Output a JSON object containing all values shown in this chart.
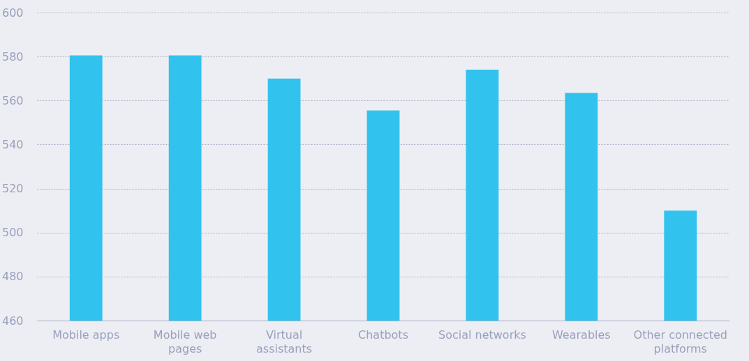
{
  "chart_data": {
    "type": "bar",
    "categories": [
      "Mobile apps",
      "Mobile web pages",
      "Virtual assistants",
      "Chatbots",
      "Social networks",
      "Wearables",
      "Other connected platforms"
    ],
    "values": [
      580.5,
      580.5,
      570,
      555.5,
      574,
      563.5,
      510
    ],
    "color": "#31c3ee",
    "ylim": [
      460,
      600
    ],
    "yticks": [
      460,
      480,
      500,
      520,
      540,
      560,
      580,
      600
    ],
    "grid": "y"
  }
}
